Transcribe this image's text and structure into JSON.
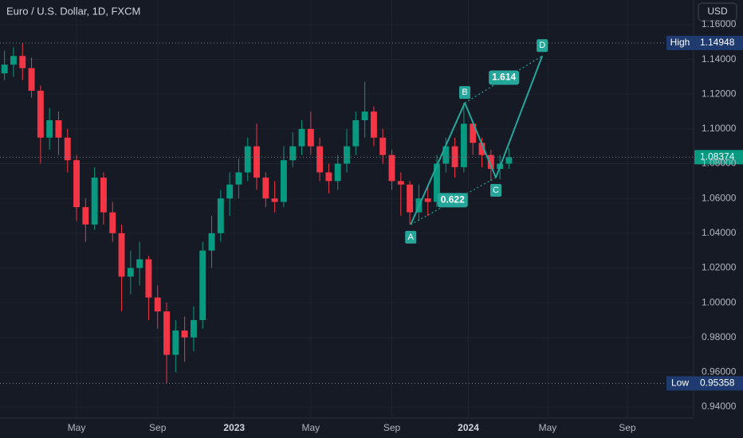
{
  "chart_data": {
    "type": "candlestick",
    "title": "Euro / U.S. Dollar, 1D, FXCM",
    "currency": "USD",
    "up_color": "#089981",
    "down_color": "#f23645",
    "grid": true,
    "xlim": [
      0,
      154
    ],
    "xticks": [
      {
        "value": 17,
        "label": "May"
      },
      {
        "value": 35,
        "label": "Sep"
      },
      {
        "value": 52,
        "label": "2023"
      },
      {
        "value": 69,
        "label": "May"
      },
      {
        "value": 87,
        "label": "Sep"
      },
      {
        "value": 104,
        "label": "2024"
      },
      {
        "value": 121.6,
        "label": "May"
      },
      {
        "value": 139.3,
        "label": "Sep"
      }
    ],
    "ylim": [
      0.9336,
      1.1742
    ],
    "yticks": [
      {
        "value": 0.94,
        "label": "0.94000"
      },
      {
        "value": 0.96,
        "label": "0.96000"
      },
      {
        "value": 0.98,
        "label": "0.98000"
      },
      {
        "value": 1.0,
        "label": "1.00000"
      },
      {
        "value": 1.02,
        "label": "1.02000"
      },
      {
        "value": 1.04,
        "label": "1.04000"
      },
      {
        "value": 1.06,
        "label": "1.06000"
      },
      {
        "value": 1.08,
        "label": "1.08000"
      },
      {
        "value": 1.1,
        "label": "1.10000"
      },
      {
        "value": 1.12,
        "label": "1.12000"
      },
      {
        "value": 1.14,
        "label": "1.14000"
      },
      {
        "value": 1.16,
        "label": "1.16000"
      }
    ],
    "x": [
      1,
      3,
      5,
      7,
      9,
      11,
      13,
      15,
      17,
      19,
      21,
      23,
      25,
      27,
      29,
      31,
      33,
      35,
      37,
      39,
      41,
      43,
      45,
      47,
      49,
      51,
      53,
      55,
      57,
      59,
      61,
      63,
      65,
      67,
      69,
      71,
      73,
      75,
      77,
      79,
      81,
      83,
      85,
      87,
      89,
      91,
      93,
      95,
      97,
      99,
      101,
      103,
      105,
      107,
      109,
      111,
      113
    ],
    "ohlc": [
      [
        1.132,
        1.145,
        1.128,
        1.137
      ],
      [
        1.137,
        1.147,
        1.13,
        1.142
      ],
      [
        1.142,
        1.14948,
        1.128,
        1.135
      ],
      [
        1.135,
        1.141,
        1.118,
        1.122
      ],
      [
        1.122,
        1.125,
        1.08,
        1.095
      ],
      [
        1.095,
        1.112,
        1.088,
        1.105
      ],
      [
        1.105,
        1.11,
        1.085,
        1.095
      ],
      [
        1.095,
        1.1,
        1.075,
        1.082
      ],
      [
        1.082,
        1.085,
        1.047,
        1.055
      ],
      [
        1.055,
        1.06,
        1.035,
        1.045
      ],
      [
        1.045,
        1.078,
        1.042,
        1.072
      ],
      [
        1.072,
        1.075,
        1.045,
        1.052
      ],
      [
        1.052,
        1.058,
        1.035,
        1.04
      ],
      [
        1.04,
        1.045,
        0.995,
        1.015
      ],
      [
        1.015,
        1.03,
        1.005,
        1.02
      ],
      [
        1.02,
        1.035,
        1.01,
        1.025
      ],
      [
        1.025,
        1.027,
        0.99,
        1.003
      ],
      [
        1.003,
        1.01,
        0.985,
        0.995
      ],
      [
        0.995,
        1.0,
        0.95358,
        0.97
      ],
      [
        0.97,
        0.99,
        0.96,
        0.984
      ],
      [
        0.984,
        0.992,
        0.966,
        0.98
      ],
      [
        0.98,
        0.998,
        0.972,
        0.99
      ],
      [
        0.99,
        1.035,
        0.985,
        1.03
      ],
      [
        1.03,
        1.05,
        1.02,
        1.04
      ],
      [
        1.04,
        1.065,
        1.035,
        1.06
      ],
      [
        1.06,
        1.075,
        1.05,
        1.068
      ],
      [
        1.068,
        1.083,
        1.06,
        1.075
      ],
      [
        1.075,
        1.095,
        1.07,
        1.09
      ],
      [
        1.09,
        1.103,
        1.065,
        1.072
      ],
      [
        1.072,
        1.075,
        1.055,
        1.06
      ],
      [
        1.06,
        1.07,
        1.052,
        1.058
      ],
      [
        1.058,
        1.09,
        1.055,
        1.082
      ],
      [
        1.082,
        1.098,
        1.078,
        1.09
      ],
      [
        1.09,
        1.105,
        1.085,
        1.1
      ],
      [
        1.1,
        1.11,
        1.085,
        1.09
      ],
      [
        1.09,
        1.095,
        1.07,
        1.075
      ],
      [
        1.075,
        1.08,
        1.063,
        1.07
      ],
      [
        1.07,
        1.085,
        1.065,
        1.08
      ],
      [
        1.08,
        1.1,
        1.075,
        1.09
      ],
      [
        1.09,
        1.11,
        1.085,
        1.105
      ],
      [
        1.105,
        1.127,
        1.095,
        1.11
      ],
      [
        1.11,
        1.113,
        1.09,
        1.095
      ],
      [
        1.095,
        1.1,
        1.08,
        1.085
      ],
      [
        1.085,
        1.088,
        1.065,
        1.07
      ],
      [
        1.07,
        1.075,
        1.05,
        1.068
      ],
      [
        1.068,
        1.07,
        1.045,
        1.052
      ],
      [
        1.052,
        1.068,
        1.047,
        1.06
      ],
      [
        1.06,
        1.068,
        1.05,
        1.058
      ],
      [
        1.058,
        1.085,
        1.055,
        1.08
      ],
      [
        1.08,
        1.095,
        1.075,
        1.09
      ],
      [
        1.09,
        1.095,
        1.072,
        1.078
      ],
      [
        1.078,
        1.115,
        1.075,
        1.103
      ],
      [
        1.103,
        1.105,
        1.085,
        1.092
      ],
      [
        1.092,
        1.095,
        1.078,
        1.085
      ],
      [
        1.085,
        1.088,
        1.07,
        1.077
      ],
      [
        1.077,
        1.085,
        1.071,
        1.08
      ],
      [
        1.08,
        1.089,
        1.077,
        1.08374
      ]
    ],
    "high": {
      "label": "High",
      "value": 1.14948
    },
    "low": {
      "label": "Low",
      "value": 0.95358
    },
    "last": {
      "value": 1.08374
    },
    "pattern": {
      "color": "#26a69a",
      "points": [
        {
          "label": "A",
          "x": 91.2,
          "y": 1.045
        },
        {
          "label": "B",
          "x": 103.2,
          "y": 1.115
        },
        {
          "label": "C",
          "x": 110.1,
          "y": 1.072
        },
        {
          "label": "D",
          "x": 120.4,
          "y": 1.142
        }
      ],
      "ratios": [
        {
          "label": "0.622",
          "x": 100.5,
          "y": 1.059
        },
        {
          "label": "1.614",
          "x": 111.9,
          "y": 1.1295
        }
      ]
    }
  }
}
